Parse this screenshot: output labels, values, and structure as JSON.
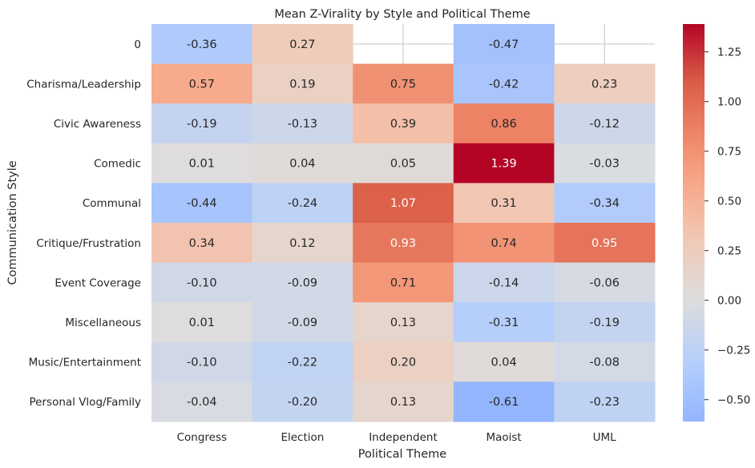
{
  "chart_data": {
    "type": "heatmap",
    "title": "Mean Z-Virality by Style and Political Theme",
    "xlabel": "Political Theme",
    "ylabel": "Communication Style",
    "x_categories": [
      "Congress",
      "Election",
      "Independent",
      "Maoist",
      "UML"
    ],
    "y_categories": [
      "0",
      "Charisma/Leadership",
      "Civic Awareness",
      "Comedic",
      "Communal",
      "Critique/Frustration",
      "Event Coverage",
      "Miscellaneous",
      "Music/Entertainment",
      "Personal Vlog/Family"
    ],
    "values": [
      [
        -0.36,
        0.27,
        null,
        -0.47,
        null
      ],
      [
        0.57,
        0.19,
        0.75,
        -0.42,
        0.23
      ],
      [
        -0.19,
        -0.13,
        0.39,
        0.86,
        -0.12
      ],
      [
        0.01,
        0.04,
        0.05,
        1.39,
        -0.03
      ],
      [
        -0.44,
        -0.24,
        1.07,
        0.31,
        -0.34
      ],
      [
        0.34,
        0.12,
        0.93,
        0.74,
        0.95
      ],
      [
        -0.1,
        -0.09,
        0.71,
        -0.14,
        -0.06
      ],
      [
        0.01,
        -0.09,
        0.13,
        -0.31,
        -0.19
      ],
      [
        -0.1,
        -0.22,
        0.2,
        0.04,
        -0.08
      ],
      [
        -0.04,
        -0.2,
        0.13,
        -0.61,
        -0.23
      ]
    ],
    "value_labels": [
      [
        "-0.36",
        "0.27",
        "",
        "-0.47",
        ""
      ],
      [
        "0.57",
        "0.19",
        "0.75",
        "-0.42",
        "0.23"
      ],
      [
        "-0.19",
        "-0.13",
        "0.39",
        "0.86",
        "-0.12"
      ],
      [
        "0.01",
        "0.04",
        "0.05",
        "1.39",
        "-0.03"
      ],
      [
        "-0.44",
        "-0.24",
        "1.07",
        "0.31",
        "-0.34"
      ],
      [
        "0.34",
        "0.12",
        "0.93",
        "0.74",
        "0.95"
      ],
      [
        "-0.10",
        "-0.09",
        "0.71",
        "-0.14",
        "-0.06"
      ],
      [
        "0.01",
        "-0.09",
        "0.13",
        "-0.31",
        "-0.19"
      ],
      [
        "-0.10",
        "-0.22",
        "0.20",
        "0.04",
        "-0.08"
      ],
      [
        "-0.04",
        "-0.20",
        "0.13",
        "-0.61",
        "-0.23"
      ]
    ],
    "colormap": "coolwarm",
    "center": 0,
    "vmin": -0.61,
    "vmax": 1.39,
    "colorbar_ticks": [
      1.25,
      1.0,
      0.75,
      0.5,
      0.25,
      0.0,
      -0.25,
      -0.5
    ],
    "colorbar_tick_labels": [
      "1.25",
      "1.00",
      "0.75",
      "0.50",
      "0.25",
      "0.00",
      "−0.25",
      "−0.50"
    ],
    "colorbar_position": "right",
    "grid": true,
    "grid_color": "#cccccc"
  }
}
